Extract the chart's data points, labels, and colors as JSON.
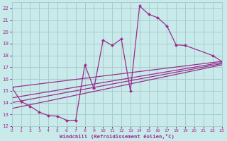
{
  "xlabel": "Windchill (Refroidissement éolien,°C)",
  "bg_color": "#c8eaea",
  "grid_color": "#aacccc",
  "line_color": "#9b2d8e",
  "xlim": [
    0,
    23
  ],
  "ylim": [
    12,
    22.5
  ],
  "xticks": [
    0,
    1,
    2,
    3,
    4,
    5,
    6,
    7,
    8,
    9,
    10,
    11,
    12,
    13,
    14,
    15,
    16,
    17,
    18,
    19,
    20,
    21,
    22,
    23
  ],
  "yticks": [
    12,
    13,
    14,
    15,
    16,
    17,
    18,
    19,
    20,
    21,
    22
  ],
  "main_x": [
    0,
    1,
    2,
    3,
    4,
    5,
    6,
    7,
    8,
    9,
    10,
    11,
    12,
    13,
    14,
    15,
    16,
    17,
    18,
    19,
    22,
    23
  ],
  "main_y": [
    15.3,
    14.1,
    13.7,
    13.2,
    12.9,
    12.85,
    12.5,
    12.5,
    17.2,
    15.2,
    19.3,
    18.85,
    19.4,
    15.0,
    22.2,
    21.5,
    21.2,
    20.5,
    18.9,
    18.85,
    18.0,
    17.5
  ],
  "regression_lines": [
    {
      "x_start": 0,
      "y_start": 15.3,
      "x_end": 23,
      "y_end": 17.5
    },
    {
      "x_start": 0,
      "y_start": 14.4,
      "x_end": 23,
      "y_end": 17.4
    },
    {
      "x_start": 0,
      "y_start": 14.0,
      "x_end": 23,
      "y_end": 17.3
    },
    {
      "x_start": 0,
      "y_start": 13.5,
      "x_end": 23,
      "y_end": 17.2
    }
  ]
}
